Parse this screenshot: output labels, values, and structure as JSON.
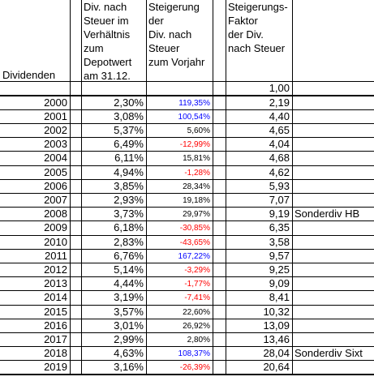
{
  "header": {
    "col_a": "Dividenden",
    "col_b": [
      "Div. nach",
      "Steuer im",
      "Verhältnis",
      "zum",
      "Depotwert",
      "am 31.12."
    ],
    "col_c": [
      "Steigerung",
      "der",
      "Div. nach",
      "Steuer",
      "zum Vorjahr"
    ],
    "col_e": [
      "Steigerungs-",
      "Faktor",
      "der Div.",
      "nach Steuer"
    ]
  },
  "start_factor": "1,00",
  "rows": [
    {
      "year": "2000",
      "div": "2,30%",
      "steigerung": "119,35%",
      "color": "#0000ff",
      "faktor": "2,19"
    },
    {
      "year": "2001",
      "div": "3,08%",
      "steigerung": "100,54%",
      "color": "#0000ff",
      "faktor": "4,40"
    },
    {
      "year": "2002",
      "div": "5,37%",
      "steigerung": "5,60%",
      "color": "#000000",
      "faktor": "4,65"
    },
    {
      "year": "2003",
      "div": "6,49%",
      "steigerung": "-12,99%",
      "color": "#ff0000",
      "faktor": "4,04"
    },
    {
      "year": "2004",
      "div": "6,11%",
      "steigerung": "15,81%",
      "color": "#000000",
      "faktor": "4,68"
    },
    {
      "year": "2005",
      "div": "4,94%",
      "steigerung": "-1,28%",
      "color": "#ff0000",
      "faktor": "4,62"
    },
    {
      "year": "2006",
      "div": "3,85%",
      "steigerung": "28,34%",
      "color": "#000000",
      "faktor": "5,93"
    },
    {
      "year": "2007",
      "div": "2,93%",
      "steigerung": "19,18%",
      "color": "#000000",
      "faktor": "7,07"
    },
    {
      "year": "2008",
      "div": "3,73%",
      "steigerung": "29,97%",
      "color": "#000000",
      "faktor": "9,19",
      "note": "Sonderdiv HB"
    },
    {
      "year": "2009",
      "div": "6,18%",
      "steigerung": "-30,85%",
      "color": "#ff0000",
      "faktor": "6,35"
    },
    {
      "year": "2010",
      "div": "2,83%",
      "steigerung": "-43,65%",
      "color": "#ff0000",
      "faktor": "3,58"
    },
    {
      "year": "2011",
      "div": "6,76%",
      "steigerung": "167,22%",
      "color": "#0000ff",
      "faktor": "9,57"
    },
    {
      "year": "2012",
      "div": "5,14%",
      "steigerung": "-3,29%",
      "color": "#ff0000",
      "faktor": "9,25"
    },
    {
      "year": "2013",
      "div": "4,44%",
      "steigerung": "-1,77%",
      "color": "#ff0000",
      "faktor": "9,09"
    },
    {
      "year": "2014",
      "div": "3,19%",
      "steigerung": "-7,41%",
      "color": "#ff0000",
      "faktor": "8,41"
    },
    {
      "year": "2015",
      "div": "3,57%",
      "steigerung": "22,60%",
      "color": "#000000",
      "faktor": "10,32"
    },
    {
      "year": "2016",
      "div": "3,01%",
      "steigerung": "26,92%",
      "color": "#000000",
      "faktor": "13,09"
    },
    {
      "year": "2017",
      "div": "2,99%",
      "steigerung": "2,80%",
      "color": "#000000",
      "faktor": "13,46"
    },
    {
      "year": "2018",
      "div": "4,63%",
      "steigerung": "108,37%",
      "color": "#0000ff",
      "faktor": "28,04",
      "note": "Sonderdiv Sixt"
    },
    {
      "year": "2019",
      "div": "3,16%",
      "steigerung": "-26,39%",
      "color": "#ff0000",
      "faktor": "20,64"
    }
  ]
}
